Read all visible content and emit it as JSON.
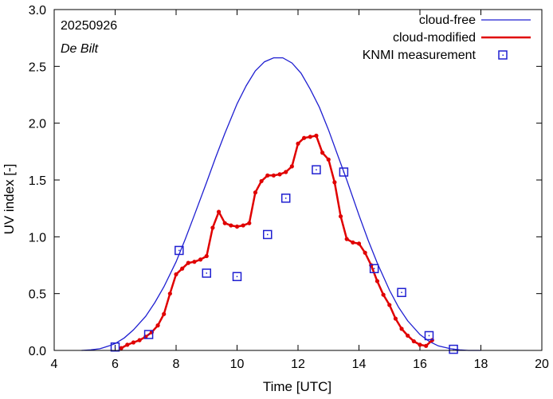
{
  "chart_data": {
    "type": "line",
    "title": "",
    "xlabel": "Time  [UTC]",
    "ylabel": "UV index  [-]",
    "xlim": [
      4,
      20
    ],
    "ylim": [
      0,
      3.0
    ],
    "x_ticks": [
      4,
      6,
      8,
      10,
      12,
      14,
      16,
      18,
      20
    ],
    "y_ticks": [
      0.0,
      0.5,
      1.0,
      1.5,
      2.0,
      2.5,
      3.0
    ],
    "x_tick_labels": [
      "4",
      "6",
      "8",
      "10",
      "12",
      "14",
      "16",
      "18",
      "20"
    ],
    "y_tick_labels": [
      "0.0",
      "0.5",
      "1.0",
      "1.5",
      "2.0",
      "2.5",
      "3.0"
    ],
    "annotations": {
      "date": "20250926",
      "location": "De Bilt"
    },
    "legend": {
      "position": "top-right"
    },
    "series": [
      {
        "name": "cloud-free",
        "kind": "line",
        "color": "#1f1fd1",
        "x": [
          4.9,
          5.2,
          5.5,
          5.8,
          6.0,
          6.3,
          6.6,
          7.0,
          7.3,
          7.6,
          8.0,
          8.3,
          8.6,
          9.0,
          9.3,
          9.6,
          10.0,
          10.3,
          10.6,
          10.9,
          11.2,
          11.5,
          11.8,
          12.1,
          12.4,
          12.7,
          13.0,
          13.3,
          13.6,
          14.0,
          14.3,
          14.6,
          15.0,
          15.3,
          15.6,
          16.0,
          16.3,
          16.6,
          17.0,
          17.3,
          17.6,
          18.0
        ],
        "y": [
          0.0,
          0.005,
          0.015,
          0.04,
          0.06,
          0.11,
          0.18,
          0.3,
          0.42,
          0.56,
          0.78,
          0.98,
          1.19,
          1.48,
          1.7,
          1.91,
          2.17,
          2.33,
          2.46,
          2.54,
          2.575,
          2.575,
          2.53,
          2.44,
          2.3,
          2.14,
          1.94,
          1.72,
          1.5,
          1.19,
          0.97,
          0.77,
          0.53,
          0.38,
          0.26,
          0.14,
          0.08,
          0.04,
          0.015,
          0.005,
          0.0,
          0.0
        ]
      },
      {
        "name": "cloud-modified",
        "kind": "line-markers",
        "color": "#e00000",
        "x": [
          6.2,
          6.4,
          6.6,
          6.8,
          7.0,
          7.2,
          7.4,
          7.6,
          7.8,
          8.0,
          8.2,
          8.4,
          8.6,
          8.8,
          9.0,
          9.2,
          9.4,
          9.6,
          9.8,
          10.0,
          10.2,
          10.4,
          10.6,
          10.8,
          11.0,
          11.2,
          11.4,
          11.6,
          11.8,
          12.0,
          12.2,
          12.4,
          12.6,
          12.8,
          13.0,
          13.2,
          13.4,
          13.6,
          13.8,
          14.0,
          14.2,
          14.4,
          14.6,
          14.8,
          15.0,
          15.2,
          15.4,
          15.6,
          15.8,
          16.0,
          16.2,
          16.4
        ],
        "y": [
          0.02,
          0.05,
          0.07,
          0.09,
          0.12,
          0.16,
          0.22,
          0.32,
          0.5,
          0.67,
          0.72,
          0.77,
          0.78,
          0.8,
          0.83,
          1.08,
          1.22,
          1.12,
          1.1,
          1.09,
          1.1,
          1.12,
          1.39,
          1.49,
          1.54,
          1.54,
          1.55,
          1.57,
          1.62,
          1.82,
          1.87,
          1.88,
          1.89,
          1.74,
          1.68,
          1.48,
          1.18,
          0.98,
          0.95,
          0.94,
          0.86,
          0.75,
          0.61,
          0.49,
          0.4,
          0.28,
          0.19,
          0.13,
          0.08,
          0.05,
          0.04,
          0.09
        ]
      },
      {
        "name": "KNMI measurement",
        "kind": "markers",
        "color": "#1f1fd1",
        "x": [
          6.0,
          7.1,
          8.1,
          9.0,
          10.0,
          11.0,
          11.6,
          12.6,
          13.5,
          14.5,
          15.4,
          16.3,
          17.1
        ],
        "y": [
          0.03,
          0.14,
          0.88,
          0.68,
          0.65,
          1.02,
          1.34,
          1.59,
          1.57,
          0.72,
          0.51,
          0.13,
          0.01
        ]
      }
    ]
  }
}
